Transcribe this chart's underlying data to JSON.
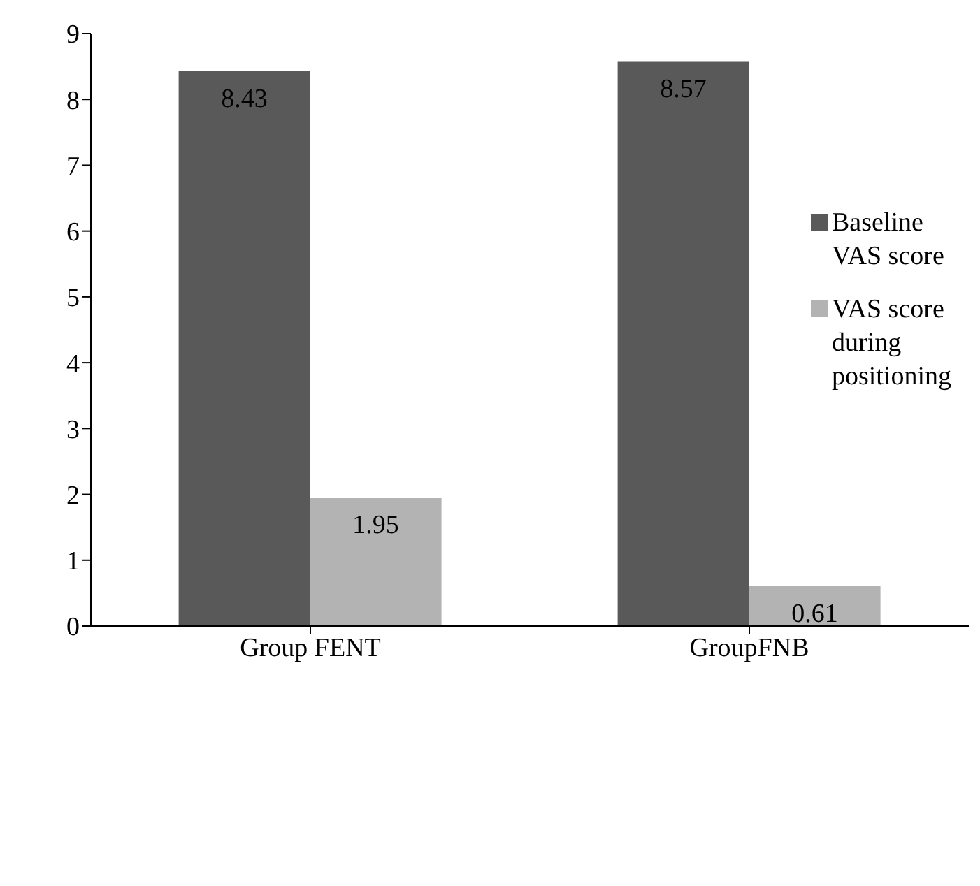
{
  "chart_data": {
    "type": "bar",
    "categories": [
      "Group FENT",
      "GroupFNB"
    ],
    "series": [
      {
        "name": "Baseline VAS score",
        "color": "#595959",
        "values": [
          8.43,
          8.57
        ]
      },
      {
        "name": "VAS score during positioning",
        "color": "#b3b3b3",
        "values": [
          1.95,
          0.61
        ]
      }
    ],
    "ylim": [
      0,
      9
    ],
    "yticks": [
      0,
      1,
      2,
      3,
      4,
      5,
      6,
      7,
      8,
      9
    ],
    "data_labels": true,
    "legend": "right",
    "grid": false
  }
}
